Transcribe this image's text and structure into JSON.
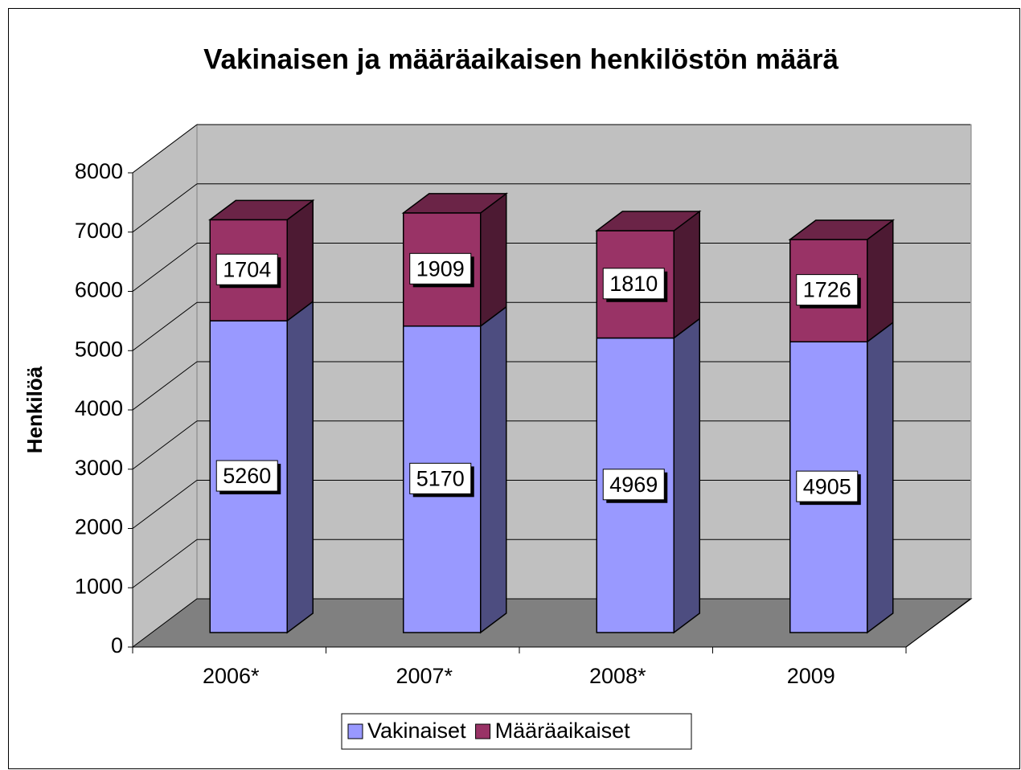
{
  "chart_data": {
    "type": "bar3d_stacked",
    "title": "Vakinaisen ja määräaikaisen henkilöstön määrä",
    "y_label": "Henkilöä",
    "categories": [
      "2006*",
      "2007*",
      "2008*",
      "2009"
    ],
    "series": [
      {
        "name": "Vakinaiset",
        "color": "#9999ff",
        "values": [
          5260,
          5170,
          4969,
          4905
        ]
      },
      {
        "name": "Määräaikaiset",
        "color": "#993366",
        "values": [
          1704,
          1909,
          1810,
          1726
        ]
      }
    ],
    "ylim": [
      0,
      8000
    ],
    "yticks": [
      0,
      1000,
      2000,
      3000,
      4000,
      5000,
      6000,
      7000,
      8000
    ],
    "grid": true,
    "legend": "bottom"
  }
}
